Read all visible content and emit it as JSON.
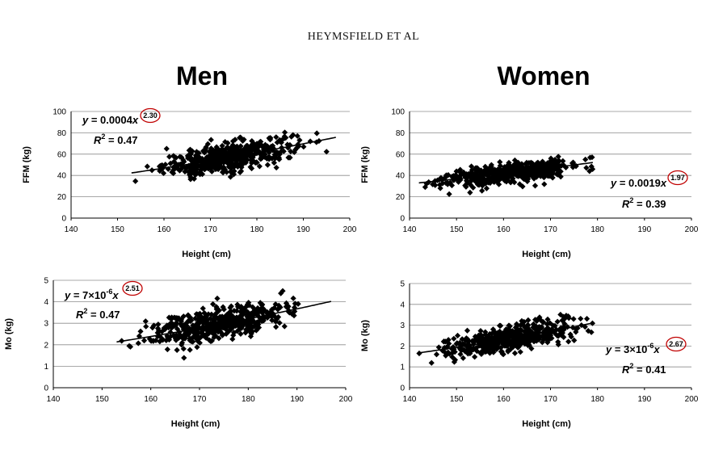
{
  "header": "HEYMSFIELD ET AL",
  "groups": {
    "men": "Men",
    "women": "Women"
  },
  "chart_data": [
    {
      "id": "men-ffm",
      "type": "scatter",
      "group": "Men",
      "xlabel": "Height (cm)",
      "ylabel": "FFM (kg)",
      "xlim": [
        140,
        200
      ],
      "ylim": [
        0,
        100
      ],
      "xstep": 10,
      "ystep": 20,
      "xticks": [
        "140",
        "150",
        "160",
        "170",
        "180",
        "190",
        "200"
      ],
      "yticks": [
        "0",
        "20",
        "40",
        "60",
        "80",
        "100"
      ],
      "grid": true,
      "fit": {
        "a": 0.0004,
        "b": 2.3
      },
      "equation": {
        "lead": "y = 0.0004",
        "x": "x",
        "exponent": "2.30",
        "r2_lead": "R",
        "r2_sup": "2",
        "r2_value": " = 0.47"
      },
      "cloud": {
        "x_min": 153,
        "x_max": 197,
        "x_mean": 174,
        "x_sd": 7,
        "spread": 6.5,
        "count": 520
      }
    },
    {
      "id": "women-ffm",
      "type": "scatter",
      "group": "Women",
      "xlabel": "Height (cm)",
      "ylabel": "FFM (kg)",
      "xlim": [
        140,
        200
      ],
      "ylim": [
        0,
        100
      ],
      "xstep": 10,
      "ystep": 20,
      "xticks": [
        "140",
        "150",
        "160",
        "170",
        "180",
        "190",
        "200"
      ],
      "yticks": [
        "0",
        "20",
        "40",
        "60",
        "80",
        "100"
      ],
      "grid": true,
      "fit": {
        "a": 0.0019,
        "b": 1.97
      },
      "equation": {
        "lead": "y = 0.0019",
        "x": "x",
        "exponent": "1.97",
        "r2_lead": "R",
        "r2_sup": "2",
        "r2_value": " = 0.39"
      },
      "cloud": {
        "x_min": 142,
        "x_max": 179,
        "x_mean": 161,
        "x_sd": 7,
        "spread": 4.5,
        "count": 520
      }
    },
    {
      "id": "men-mo",
      "type": "scatter",
      "group": "Men",
      "xlabel": "Height (cm)",
      "ylabel": "Mo (kg)",
      "xlim": [
        140,
        200
      ],
      "ylim": [
        0,
        5
      ],
      "xstep": 10,
      "ystep": 1,
      "xticks": [
        "140",
        "150",
        "160",
        "170",
        "180",
        "190",
        "200"
      ],
      "yticks": [
        "0",
        "1",
        "2",
        "3",
        "4",
        "5"
      ],
      "grid": true,
      "fit": {
        "a": 7e-06,
        "b": 2.51
      },
      "equation": {
        "lead": "y = 7×10",
        "lead_sup": "-6",
        "x": "x",
        "exponent": "2.51",
        "r2_lead": "R",
        "r2_sup": "2",
        "r2_value": " = 0.47"
      },
      "cloud": {
        "x_min": 153,
        "x_max": 197,
        "x_mean": 174,
        "x_sd": 7,
        "spread": 0.38,
        "count": 520
      }
    },
    {
      "id": "women-mo",
      "type": "scatter",
      "group": "Women",
      "xlabel": "Height (cm)",
      "ylabel": "Mo (kg)",
      "xlim": [
        140,
        200
      ],
      "ylim": [
        0,
        5
      ],
      "xstep": 10,
      "ystep": 1,
      "xticks": [
        "140",
        "150",
        "160",
        "170",
        "180",
        "190",
        "200"
      ],
      "yticks": [
        "0",
        "1",
        "2",
        "3",
        "4",
        "5"
      ],
      "grid": true,
      "fit": {
        "a": 3e-06,
        "b": 2.67
      },
      "equation": {
        "lead": "y = 3×10",
        "lead_sup": "-6",
        "x": "x",
        "exponent": "2.67",
        "r2_lead": "R",
        "r2_sup": "2",
        "r2_value": " = 0.41"
      },
      "cloud": {
        "x_min": 142,
        "x_max": 179,
        "x_mean": 161,
        "x_sd": 7,
        "spread": 0.3,
        "count": 520
      }
    }
  ]
}
